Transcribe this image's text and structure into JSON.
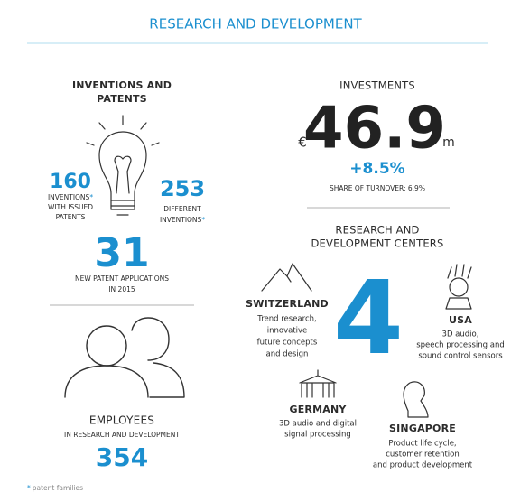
{
  "header": {
    "title": "RESEARCH AND DEVELOPMENT"
  },
  "inventions": {
    "heading": [
      "INVENTIONS AND",
      "PATENTS"
    ],
    "items": [
      {
        "value": "160",
        "label": [
          "INVENTIONS",
          "WITH ISSUED",
          "PATENTS"
        ],
        "mark": "*"
      },
      {
        "value": "253",
        "label": [
          "DIFFERENT",
          "INVENTIONS"
        ],
        "mark": "*"
      },
      {
        "value": "31",
        "label": [
          "NEW PATENT APPLICATIONS",
          "IN 2015"
        ]
      }
    ]
  },
  "employees": {
    "heading": "EMPLOYEES",
    "subheading": "IN RESEARCH AND DEVELOPMENT",
    "value": "354"
  },
  "investments": {
    "heading": "INVESTMENTS",
    "currency": "€",
    "value": "46.9",
    "unit": "m",
    "change": "+8.5%",
    "share": "SHARE OF TURNOVER: 6.9%"
  },
  "centers": {
    "heading": [
      "RESEARCH AND",
      "DEVELOPMENT CENTERS"
    ],
    "count": "4",
    "locations": [
      {
        "name": "SWITZERLAND",
        "description": [
          "Trend research,",
          "innovative",
          "future concepts",
          "and design"
        ]
      },
      {
        "name": "USA",
        "description": [
          "3D audio,",
          "speech processing and",
          "sound control sensors"
        ]
      },
      {
        "name": "GERMANY",
        "description": [
          "3D audio and digital",
          "signal processing"
        ]
      },
      {
        "name": "SINGAPORE",
        "description": [
          "Product life cycle,",
          "customer retention",
          "and product development"
        ]
      }
    ]
  },
  "footnote": {
    "mark": "*",
    "text": "patent families"
  }
}
